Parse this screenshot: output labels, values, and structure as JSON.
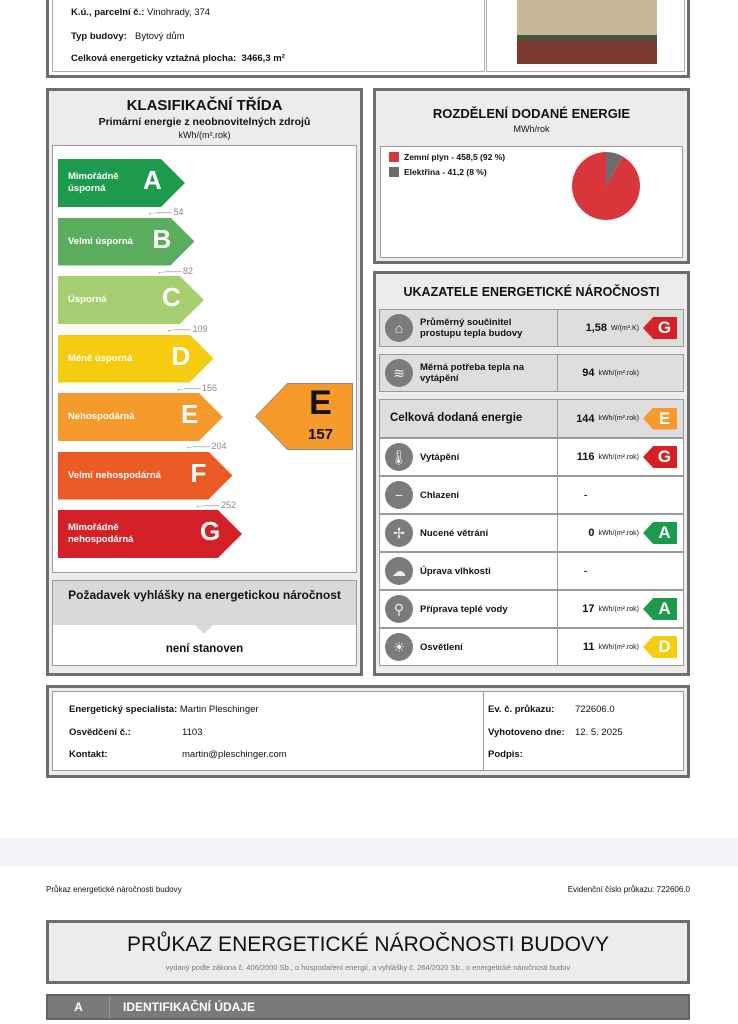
{
  "top": {
    "ku_label": "K.ú., parcelní č.:",
    "ku_value": "Vinohrady, 374",
    "type_label": "Typ budovy:",
    "type_value": "Bytový dům",
    "area_label": "Celková energeticky vztažná plocha:",
    "area_value": "3466,3 m²"
  },
  "classification": {
    "title": "KLASIFIKAČNÍ TŘÍDA",
    "subtitle": "Primární energie z neobnovitelných zdrojů",
    "unit": "kWh/(m².rok)",
    "classes": [
      {
        "letter": "A",
        "label": "Mimořádně úsporná",
        "color": "#1e9a4c",
        "threshold": "54"
      },
      {
        "letter": "B",
        "label": "Velmi úsporná",
        "color": "#5cae5f",
        "threshold": "82"
      },
      {
        "letter": "C",
        "label": "Úsporná",
        "color": "#a6cf72",
        "threshold": "109"
      },
      {
        "letter": "D",
        "label": "Méně úsporná",
        "color": "#f6cc10",
        "threshold": "156"
      },
      {
        "letter": "E",
        "label": "Nehospodárná",
        "color": "#f59a2b",
        "threshold": "204"
      },
      {
        "letter": "F",
        "label": "Velmi nehospodárná",
        "color": "#ec5a26",
        "threshold": "252"
      },
      {
        "letter": "G",
        "label": "Mimořádně nehospodárná",
        "color": "#d42128",
        "threshold": ""
      }
    ],
    "result_class": "E",
    "result_value": "157",
    "result_color": "#f59a2b",
    "requirement_title": "Požadavek vyhlášky na energetickou náročnost",
    "requirement_value": "není stanoven"
  },
  "distribution": {
    "title": "ROZDĚLENÍ DODANÉ ENERGIE",
    "unit": "MWh/rok",
    "chart_data": {
      "type": "pie",
      "series": [
        {
          "name": "Zemní plyn - 458,5 (92 %)",
          "value": 458.5,
          "color": "#d9363b"
        },
        {
          "name": "Elektřina - 41,2 (8 %)",
          "value": 41.2,
          "color": "#6c6c6c"
        }
      ]
    }
  },
  "indicators": {
    "title": "UKAZATELE ENERGETICKÉ NÁROČNOSTI",
    "rows": [
      {
        "icon": "house-icon",
        "glyph": "⌂",
        "name": "Průměrný součinitel prostupu tepla budovy",
        "value": "1,58",
        "unit": "W/(m².K)",
        "cls": "G",
        "color": "#d42128",
        "gray": true
      },
      {
        "icon": "heat-demand-icon",
        "glyph": "≋",
        "name": "Měrná potřeba tepla na vytápění",
        "value": "94",
        "unit": "kWh/(m².rok)",
        "cls": "",
        "color": "",
        "gray": true
      },
      {
        "icon": "",
        "glyph": "",
        "name": "Celková dodaná energie",
        "value": "144",
        "unit": "kWh/(m².rok)",
        "cls": "E",
        "color": "#f59a2b",
        "gray": true,
        "big": true
      },
      {
        "icon": "heating-thermometer-icon",
        "glyph": "🌡",
        "name": "Vytápění",
        "value": "116",
        "unit": "kWh/(m².rok)",
        "cls": "G",
        "color": "#d42128"
      },
      {
        "icon": "cooling-thermometer-icon",
        "glyph": "−",
        "name": "Chlazení",
        "value": "-",
        "unit": "",
        "cls": "",
        "color": ""
      },
      {
        "icon": "fan-icon",
        "glyph": "✢",
        "name": "Nucené větrání",
        "value": "0",
        "unit": "kWh/(m².rok)",
        "cls": "A",
        "color": "#1e9a4c"
      },
      {
        "icon": "humidity-icon",
        "glyph": "☁",
        "name": "Úprava vlhkosti",
        "value": "-",
        "unit": "",
        "cls": "",
        "color": ""
      },
      {
        "icon": "water-tap-icon",
        "glyph": "⚲",
        "name": "Příprava teplé vody",
        "value": "17",
        "unit": "kWh/(m².rok)",
        "cls": "A",
        "color": "#1e9a4c"
      },
      {
        "icon": "light-bulb-icon",
        "glyph": "☀",
        "name": "Osvětlení",
        "value": "11",
        "unit": "kWh/(m².rok)",
        "cls": "D",
        "color": "#f6cc10"
      }
    ]
  },
  "specialist": {
    "name_label": "Energetický specialista:",
    "name": "Martin Pleschinger",
    "cert_label": "Osvědčení č.:",
    "cert": "1103",
    "contact_label": "Kontakt:",
    "contact": "martin@pleschinger.com",
    "ev_label": "Ev. č. průkazu:",
    "ev": "722606.0",
    "date_label": "Vyhotoveno dne:",
    "date": "12. 5. 2025",
    "sign_label": "Podpis:"
  },
  "page2": {
    "header_left": "Průkaz energetické náročnosti budovy",
    "header_right": "Evidenční číslo průkazu: 722606.0",
    "title": "PRŮKAZ ENERGETICKÉ NÁROČNOSTI BUDOVY",
    "subtitle": "vydaný podle zákona č. 406/2000 Sb., o hospodaření energií, a vyhlášky č. 264/2020 Sb., o energetické náročnosti budov",
    "section_letter": "A",
    "section_title": "IDENTIFIKAČNÍ ÚDAJE"
  }
}
